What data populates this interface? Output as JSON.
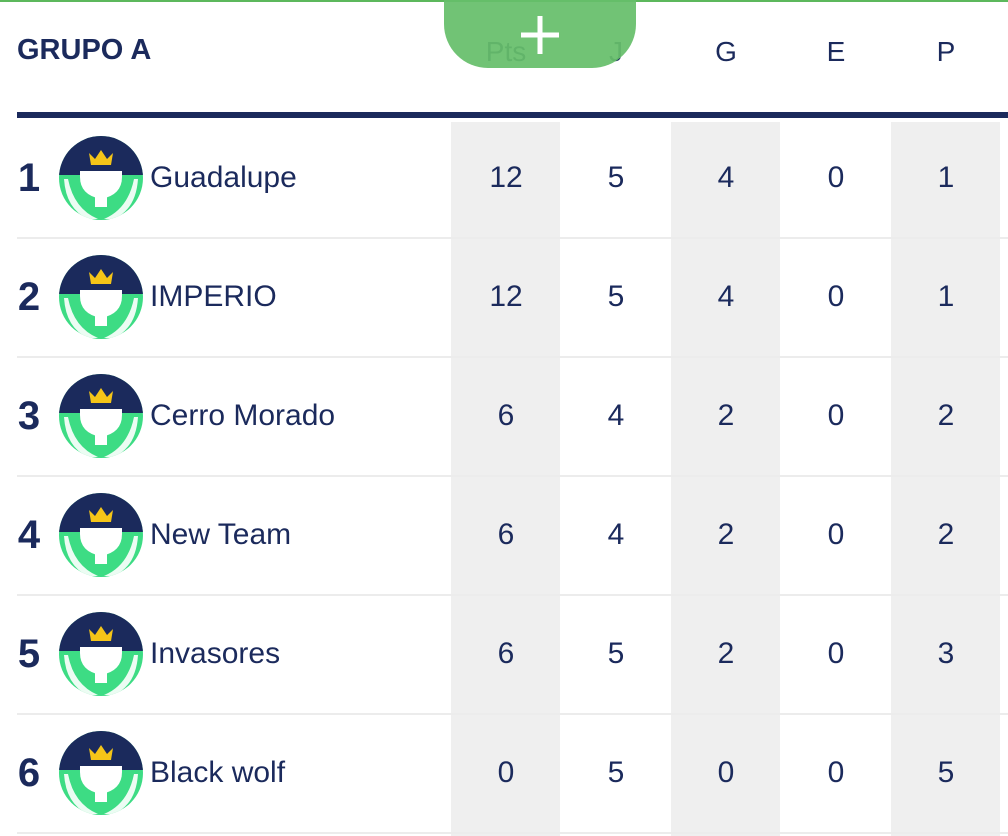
{
  "header": {
    "title": "GRUPO A",
    "columns": [
      "Pts",
      "J",
      "G",
      "E",
      "P"
    ]
  },
  "table": {
    "rows": [
      [
        1,
        "Guadalupe",
        12,
        5,
        4,
        0,
        1
      ],
      [
        2,
        "IMPERIO",
        12,
        5,
        4,
        0,
        1
      ],
      [
        3,
        "Cerro Morado",
        6,
        4,
        2,
        0,
        2
      ],
      [
        4,
        "New Team",
        6,
        4,
        2,
        0,
        2
      ],
      [
        5,
        "Invasores",
        6,
        5,
        2,
        0,
        3
      ],
      [
        6,
        "Black wolf",
        0,
        5,
        0,
        0,
        5
      ]
    ]
  }
}
